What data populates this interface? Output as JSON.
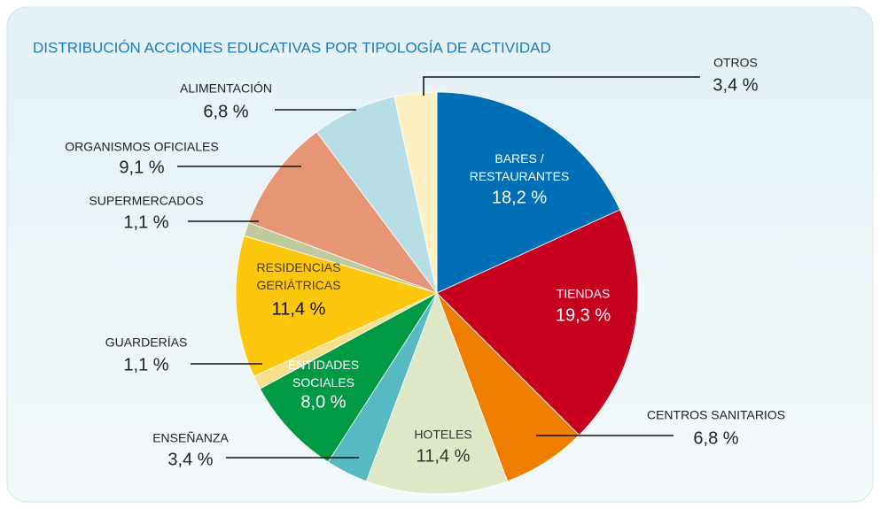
{
  "chart_data": {
    "type": "pie",
    "title": "DISTRIBUCIÓN ACCIONES EDUCATIVAS POR TIPOLOGÍA DE ACTIVIDAD",
    "categories": [
      "BARES /\nRESTAURANTES",
      "TIENDAS",
      "CENTROS SANITARIOS",
      "HOTELES",
      "ENSEÑANZA",
      "ENTIDADES\nSOCIALES",
      "GUARDERÍAS",
      "RESIDENCIAS\nGERIÁTRICAS",
      "SUPERMERCADOS",
      "ORGANISMOS OFICIALES",
      "ALIMENTACIÓN",
      "OTROS"
    ],
    "values": [
      18.2,
      19.3,
      6.8,
      11.4,
      3.4,
      8.0,
      1.1,
      11.4,
      1.1,
      9.1,
      6.8,
      3.4
    ],
    "value_labels": [
      "18,2 %",
      "19,3 %",
      "6,8 %",
      "11,4 %",
      "3,4 %",
      "8,0 %",
      "1,1 %",
      "11,4 %",
      "1,1 %",
      "9,1 %",
      "6,8 %",
      "3,4 %"
    ],
    "colors": [
      "#006fb6",
      "#c8001f",
      "#ee7d00",
      "#dde9c6",
      "#57b9c1",
      "#009a45",
      "#f6e08c",
      "#fdc70d",
      "#bfcb9c",
      "#e69575",
      "#b7dde5",
      "#fdf1c3"
    ]
  }
}
